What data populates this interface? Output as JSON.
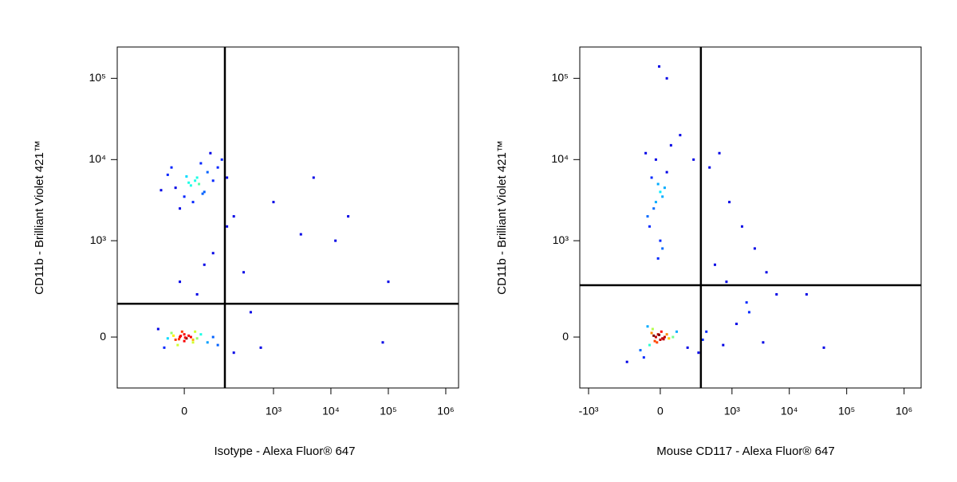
{
  "chart_data": [
    {
      "type": "scatter",
      "xlabel": "Isotype - Alexa Fluor® 647",
      "ylabel": "CD11b - Brilliant Violet 421™",
      "xscale": "biexponential",
      "yscale": "biexponential",
      "xlim": [
        -410,
        1670000
      ],
      "ylim": [
        -262,
        243000
      ],
      "xticks": [
        0,
        {
          "value": 1000,
          "label": "10³"
        },
        {
          "value": 10000,
          "label": "10⁴"
        },
        {
          "value": 100000,
          "label": "10⁵"
        },
        {
          "value": 1000000,
          "label": "10⁶"
        }
      ],
      "yticks": [
        0,
        {
          "value": 1000,
          "label": "10³"
        },
        {
          "value": 10000,
          "label": "10⁴"
        },
        {
          "value": 100000,
          "label": "10⁵"
        }
      ],
      "gates": {
        "x": 137,
        "y": 143
      },
      "x": [
        -20,
        10,
        30,
        50,
        0,
        -40,
        60,
        20,
        80,
        -60,
        40,
        100,
        -10,
        15,
        25,
        35,
        5,
        45,
        120,
        -30,
        70,
        150,
        -10,
        0,
        5,
        -20,
        10,
        20,
        -5,
        15,
        -30,
        30,
        -15,
        0,
        25,
        -40,
        40,
        -50,
        60,
        -70,
        80,
        100,
        -12,
        -8,
        2,
        -25,
        20,
        50,
        -10,
        80,
        200,
        300,
        400,
        30,
        150,
        1000,
        5000,
        20000,
        12000,
        100000,
        80000,
        3000,
        600,
        200
      ],
      "y": [
        4500,
        5200,
        6000,
        4000,
        3500,
        6500,
        7000,
        3000,
        5500,
        4200,
        9000,
        8000,
        2500,
        4800,
        5500,
        5000,
        6200,
        3800,
        10000,
        8000,
        12000,
        6000,
        0,
        10,
        -5,
        -10,
        5,
        -20,
        20,
        0,
        15,
        -5,
        -30,
        -15,
        20,
        -5,
        10,
        -40,
        -20,
        30,
        0,
        -30,
        -8,
        4,
        -2,
        5,
        -10,
        500,
        300,
        700,
        2000,
        400,
        100,
        200,
        1500,
        3000,
        6000,
        2000,
        1000,
        300,
        -20,
        1200,
        -40,
        -60
      ]
    },
    {
      "type": "scatter",
      "xlabel": "Mouse CD117 - Alexa Fluor® 647",
      "ylabel": "CD11b - Brilliant Violet 421™",
      "xscale": "biexponential",
      "yscale": "biexponential",
      "xlim": [
        -1425,
        1980000
      ],
      "ylim": [
        -262,
        243000
      ],
      "xticks": [
        {
          "value": -1000,
          "label": "-10³"
        },
        0,
        {
          "value": 1000,
          "label": "10³"
        },
        {
          "value": 10000,
          "label": "10⁴"
        },
        {
          "value": 100000,
          "label": "10⁵"
        },
        {
          "value": 1000000,
          "label": "10⁶"
        }
      ],
      "yticks": [
        0,
        {
          "value": 1000,
          "label": "10³"
        },
        {
          "value": 10000,
          "label": "10⁴"
        },
        {
          "value": 100000,
          "label": "10⁵"
        }
      ],
      "gates": {
        "x": 277,
        "y": 269
      },
      "x": [
        -20,
        -10,
        0,
        -30,
        10,
        -40,
        5,
        -15,
        20,
        -25,
        -5,
        15,
        -35,
        30,
        -50,
        40,
        -60,
        60,
        80,
        -20,
        0,
        -10,
        -30,
        10,
        -40,
        20,
        -50,
        30,
        -60,
        0,
        -20,
        10,
        -70,
        50,
        -10,
        100,
        200,
        400,
        600,
        900,
        1500,
        2500,
        4000,
        6000,
        300,
        700,
        1200,
        2000,
        3500,
        500,
        800,
        1800,
        -80,
        -100,
        150,
        250,
        350,
        20000,
        40000,
        -200,
        30,
        -5
      ],
      "y": [
        0,
        10,
        -10,
        5,
        -5,
        15,
        20,
        -20,
        0,
        -15,
        8,
        -8,
        30,
        10,
        -30,
        -5,
        40,
        0,
        20,
        3000,
        4000,
        5000,
        2500,
        3500,
        6000,
        4500,
        1500,
        7000,
        2000,
        1000,
        10000,
        800,
        12000,
        15000,
        600,
        20000,
        10000,
        8000,
        12000,
        3000,
        1500,
        800,
        400,
        200,
        -10,
        -30,
        50,
        100,
        -20,
        500,
        300,
        150,
        -80,
        -50,
        -40,
        -60,
        20,
        200,
        -40,
        -100,
        100000,
        140000
      ]
    }
  ]
}
